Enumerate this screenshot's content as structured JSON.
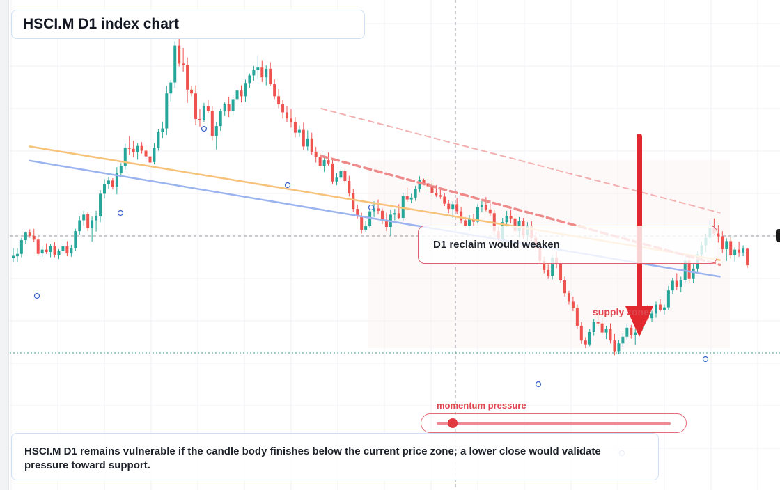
{
  "header": {
    "title": "HSCI.M D1 index chart"
  },
  "callout": {
    "text": "D1 reclaim would weaken"
  },
  "labels": {
    "supply": "supply zone",
    "momentum": "momentum pressure"
  },
  "summary": {
    "text": "HSCI.M D1 remains vulnerable if the candle body finishes below the current price zone; a lower close would validate pressure toward support."
  },
  "momentum": {
    "level": 0.07
  },
  "colors": {
    "bull": "#26a69a",
    "bear": "#ef5350",
    "trend_orange": "#f7c27a",
    "trend_blue": "#9bb4f0",
    "dashed_red": "#ee8a8a",
    "arrow": "#e0282e"
  },
  "chart_data": {
    "type": "candlestick",
    "title": "HSCI.M D1 index chart",
    "ylim": [
      0,
      1000
    ],
    "grid": true,
    "candles": [
      {
        "o": 484,
        "h": 505,
        "l": 476,
        "c": 489
      },
      {
        "o": 488,
        "h": 505,
        "l": 475,
        "c": 493
      },
      {
        "o": 493,
        "h": 527,
        "l": 486,
        "c": 522
      },
      {
        "o": 522,
        "h": 540,
        "l": 514,
        "c": 538
      },
      {
        "o": 538,
        "h": 545,
        "l": 527,
        "c": 531
      },
      {
        "o": 531,
        "h": 546,
        "l": 518,
        "c": 523
      },
      {
        "o": 523,
        "h": 528,
        "l": 489,
        "c": 493
      },
      {
        "o": 494,
        "h": 510,
        "l": 487,
        "c": 502
      },
      {
        "o": 502,
        "h": 515,
        "l": 493,
        "c": 497
      },
      {
        "o": 497,
        "h": 514,
        "l": 486,
        "c": 509
      },
      {
        "o": 509,
        "h": 518,
        "l": 486,
        "c": 490
      },
      {
        "o": 490,
        "h": 503,
        "l": 482,
        "c": 499
      },
      {
        "o": 499,
        "h": 515,
        "l": 491,
        "c": 509
      },
      {
        "o": 509,
        "h": 520,
        "l": 488,
        "c": 494
      },
      {
        "o": 494,
        "h": 512,
        "l": 487,
        "c": 505
      },
      {
        "o": 505,
        "h": 546,
        "l": 500,
        "c": 541
      },
      {
        "o": 541,
        "h": 572,
        "l": 534,
        "c": 564
      },
      {
        "o": 564,
        "h": 584,
        "l": 553,
        "c": 576
      },
      {
        "o": 577,
        "h": 581,
        "l": 541,
        "c": 547
      },
      {
        "o": 547,
        "h": 572,
        "l": 519,
        "c": 564
      },
      {
        "o": 564,
        "h": 584,
        "l": 540,
        "c": 572
      },
      {
        "o": 572,
        "h": 628,
        "l": 560,
        "c": 620
      },
      {
        "o": 620,
        "h": 651,
        "l": 610,
        "c": 641
      },
      {
        "o": 641,
        "h": 656,
        "l": 630,
        "c": 648
      },
      {
        "o": 648,
        "h": 653,
        "l": 629,
        "c": 635
      },
      {
        "o": 635,
        "h": 676,
        "l": 619,
        "c": 664
      },
      {
        "o": 664,
        "h": 685,
        "l": 656,
        "c": 679
      },
      {
        "o": 679,
        "h": 726,
        "l": 671,
        "c": 717
      },
      {
        "o": 717,
        "h": 742,
        "l": 702,
        "c": 715
      },
      {
        "o": 715,
        "h": 732,
        "l": 697,
        "c": 708
      },
      {
        "o": 708,
        "h": 727,
        "l": 692,
        "c": 721
      },
      {
        "o": 721,
        "h": 729,
        "l": 705,
        "c": 711
      },
      {
        "o": 711,
        "h": 723,
        "l": 690,
        "c": 699
      },
      {
        "o": 699,
        "h": 720,
        "l": 667,
        "c": 686
      },
      {
        "o": 687,
        "h": 727,
        "l": 682,
        "c": 717
      },
      {
        "o": 717,
        "h": 757,
        "l": 711,
        "c": 750
      },
      {
        "o": 750,
        "h": 772,
        "l": 738,
        "c": 758
      },
      {
        "o": 758,
        "h": 848,
        "l": 744,
        "c": 832
      },
      {
        "o": 832,
        "h": 860,
        "l": 815,
        "c": 855
      },
      {
        "o": 855,
        "h": 942,
        "l": 844,
        "c": 933
      },
      {
        "o": 933,
        "h": 955,
        "l": 889,
        "c": 895
      },
      {
        "o": 895,
        "h": 928,
        "l": 878,
        "c": 892
      },
      {
        "o": 892,
        "h": 908,
        "l": 812,
        "c": 840
      },
      {
        "o": 840,
        "h": 848,
        "l": 826,
        "c": 832
      },
      {
        "o": 832,
        "h": 849,
        "l": 765,
        "c": 778
      },
      {
        "o": 778,
        "h": 799,
        "l": 762,
        "c": 776
      },
      {
        "o": 776,
        "h": 812,
        "l": 771,
        "c": 805
      },
      {
        "o": 805,
        "h": 818,
        "l": 790,
        "c": 795
      },
      {
        "o": 795,
        "h": 805,
        "l": 733,
        "c": 742
      },
      {
        "o": 742,
        "h": 771,
        "l": 713,
        "c": 763
      },
      {
        "o": 763,
        "h": 800,
        "l": 753,
        "c": 794
      },
      {
        "o": 794,
        "h": 813,
        "l": 785,
        "c": 809
      },
      {
        "o": 809,
        "h": 825,
        "l": 782,
        "c": 794
      },
      {
        "o": 794,
        "h": 828,
        "l": 786,
        "c": 820
      },
      {
        "o": 820,
        "h": 845,
        "l": 809,
        "c": 838
      },
      {
        "o": 838,
        "h": 849,
        "l": 813,
        "c": 826
      },
      {
        "o": 826,
        "h": 861,
        "l": 814,
        "c": 854
      },
      {
        "o": 854,
        "h": 874,
        "l": 844,
        "c": 870
      },
      {
        "o": 870,
        "h": 890,
        "l": 859,
        "c": 881
      },
      {
        "o": 881,
        "h": 912,
        "l": 862,
        "c": 888
      },
      {
        "o": 888,
        "h": 902,
        "l": 856,
        "c": 866
      },
      {
        "o": 866,
        "h": 891,
        "l": 849,
        "c": 884
      },
      {
        "o": 884,
        "h": 898,
        "l": 848,
        "c": 852
      },
      {
        "o": 852,
        "h": 862,
        "l": 820,
        "c": 826
      },
      {
        "o": 826,
        "h": 841,
        "l": 801,
        "c": 809
      },
      {
        "o": 809,
        "h": 818,
        "l": 779,
        "c": 792
      },
      {
        "o": 792,
        "h": 806,
        "l": 772,
        "c": 779
      },
      {
        "o": 779,
        "h": 799,
        "l": 760,
        "c": 771
      },
      {
        "o": 771,
        "h": 782,
        "l": 739,
        "c": 749
      },
      {
        "o": 749,
        "h": 764,
        "l": 740,
        "c": 755
      },
      {
        "o": 755,
        "h": 770,
        "l": 712,
        "c": 720
      },
      {
        "o": 720,
        "h": 754,
        "l": 711,
        "c": 737
      },
      {
        "o": 737,
        "h": 749,
        "l": 702,
        "c": 709
      },
      {
        "o": 709,
        "h": 719,
        "l": 686,
        "c": 698
      },
      {
        "o": 698,
        "h": 706,
        "l": 673,
        "c": 679
      },
      {
        "o": 679,
        "h": 700,
        "l": 666,
        "c": 691
      },
      {
        "o": 691,
        "h": 707,
        "l": 679,
        "c": 684
      },
      {
        "o": 684,
        "h": 694,
        "l": 640,
        "c": 646
      },
      {
        "o": 646,
        "h": 664,
        "l": 638,
        "c": 654
      },
      {
        "o": 654,
        "h": 673,
        "l": 651,
        "c": 668
      },
      {
        "o": 668,
        "h": 676,
        "l": 641,
        "c": 647
      },
      {
        "o": 647,
        "h": 658,
        "l": 614,
        "c": 621
      },
      {
        "o": 621,
        "h": 630,
        "l": 582,
        "c": 588
      },
      {
        "o": 588,
        "h": 597,
        "l": 568,
        "c": 573
      },
      {
        "o": 573,
        "h": 580,
        "l": 536,
        "c": 544
      },
      {
        "o": 544,
        "h": 563,
        "l": 539,
        "c": 552
      },
      {
        "o": 552,
        "h": 590,
        "l": 548,
        "c": 583
      },
      {
        "o": 583,
        "h": 604,
        "l": 571,
        "c": 589
      },
      {
        "o": 589,
        "h": 608,
        "l": 577,
        "c": 584
      },
      {
        "o": 584,
        "h": 589,
        "l": 556,
        "c": 565
      },
      {
        "o": 565,
        "h": 580,
        "l": 541,
        "c": 550
      },
      {
        "o": 550,
        "h": 587,
        "l": 531,
        "c": 576
      },
      {
        "o": 576,
        "h": 588,
        "l": 564,
        "c": 579
      },
      {
        "o": 579,
        "h": 598,
        "l": 566,
        "c": 569
      },
      {
        "o": 569,
        "h": 622,
        "l": 562,
        "c": 615
      },
      {
        "o": 615,
        "h": 633,
        "l": 603,
        "c": 608
      },
      {
        "o": 608,
        "h": 620,
        "l": 600,
        "c": 612
      },
      {
        "o": 612,
        "h": 637,
        "l": 605,
        "c": 630
      },
      {
        "o": 630,
        "h": 657,
        "l": 623,
        "c": 649
      },
      {
        "o": 649,
        "h": 652,
        "l": 638,
        "c": 642
      },
      {
        "o": 642,
        "h": 655,
        "l": 627,
        "c": 636
      },
      {
        "o": 636,
        "h": 648,
        "l": 614,
        "c": 622
      },
      {
        "o": 622,
        "h": 638,
        "l": 613,
        "c": 617
      },
      {
        "o": 617,
        "h": 631,
        "l": 609,
        "c": 614
      },
      {
        "o": 614,
        "h": 621,
        "l": 594,
        "c": 599
      },
      {
        "o": 599,
        "h": 606,
        "l": 579,
        "c": 588
      },
      {
        "o": 588,
        "h": 604,
        "l": 569,
        "c": 598
      },
      {
        "o": 598,
        "h": 611,
        "l": 577,
        "c": 583
      },
      {
        "o": 583,
        "h": 592,
        "l": 557,
        "c": 564
      },
      {
        "o": 564,
        "h": 571,
        "l": 548,
        "c": 552
      },
      {
        "o": 552,
        "h": 575,
        "l": 542,
        "c": 566
      },
      {
        "o": 566,
        "h": 578,
        "l": 553,
        "c": 561
      },
      {
        "o": 561,
        "h": 598,
        "l": 557,
        "c": 592
      },
      {
        "o": 592,
        "h": 609,
        "l": 581,
        "c": 596
      },
      {
        "o": 596,
        "h": 613,
        "l": 583,
        "c": 587
      },
      {
        "o": 587,
        "h": 606,
        "l": 573,
        "c": 579
      },
      {
        "o": 579,
        "h": 587,
        "l": 534,
        "c": 541
      },
      {
        "o": 541,
        "h": 551,
        "l": 516,
        "c": 522
      },
      {
        "o": 522,
        "h": 569,
        "l": 514,
        "c": 560
      },
      {
        "o": 560,
        "h": 584,
        "l": 550,
        "c": 573
      },
      {
        "o": 573,
        "h": 586,
        "l": 558,
        "c": 568
      },
      {
        "o": 568,
        "h": 578,
        "l": 534,
        "c": 541
      },
      {
        "o": 541,
        "h": 571,
        "l": 528,
        "c": 562
      },
      {
        "o": 562,
        "h": 569,
        "l": 524,
        "c": 533
      },
      {
        "o": 533,
        "h": 560,
        "l": 520,
        "c": 553
      },
      {
        "o": 553,
        "h": 562,
        "l": 520,
        "c": 527
      },
      {
        "o": 527,
        "h": 539,
        "l": 499,
        "c": 506
      },
      {
        "o": 506,
        "h": 512,
        "l": 471,
        "c": 478
      },
      {
        "o": 478,
        "h": 487,
        "l": 452,
        "c": 459
      },
      {
        "o": 459,
        "h": 470,
        "l": 440,
        "c": 447
      },
      {
        "o": 447,
        "h": 491,
        "l": 439,
        "c": 485
      },
      {
        "o": 485,
        "h": 498,
        "l": 463,
        "c": 471
      },
      {
        "o": 471,
        "h": 479,
        "l": 432,
        "c": 437
      },
      {
        "o": 437,
        "h": 445,
        "l": 403,
        "c": 410
      },
      {
        "o": 410,
        "h": 415,
        "l": 386,
        "c": 392
      },
      {
        "o": 392,
        "h": 403,
        "l": 372,
        "c": 379
      },
      {
        "o": 379,
        "h": 386,
        "l": 335,
        "c": 341
      },
      {
        "o": 341,
        "h": 349,
        "l": 303,
        "c": 310
      },
      {
        "o": 310,
        "h": 317,
        "l": 294,
        "c": 302
      },
      {
        "o": 302,
        "h": 335,
        "l": 298,
        "c": 328
      },
      {
        "o": 328,
        "h": 355,
        "l": 320,
        "c": 349
      },
      {
        "o": 349,
        "h": 364,
        "l": 340,
        "c": 346
      },
      {
        "o": 346,
        "h": 357,
        "l": 320,
        "c": 327
      },
      {
        "o": 327,
        "h": 341,
        "l": 313,
        "c": 335
      },
      {
        "o": 335,
        "h": 346,
        "l": 304,
        "c": 310
      },
      {
        "o": 310,
        "h": 324,
        "l": 279,
        "c": 286
      },
      {
        "o": 286,
        "h": 311,
        "l": 281,
        "c": 304
      },
      {
        "o": 304,
        "h": 325,
        "l": 297,
        "c": 318
      },
      {
        "o": 318,
        "h": 345,
        "l": 311,
        "c": 337
      },
      {
        "o": 337,
        "h": 343,
        "l": 314,
        "c": 322
      },
      {
        "o": 322,
        "h": 335,
        "l": 301,
        "c": 327
      },
      {
        "o": 327,
        "h": 352,
        "l": 322,
        "c": 344
      },
      {
        "o": 344,
        "h": 376,
        "l": 336,
        "c": 368
      },
      {
        "o": 368,
        "h": 385,
        "l": 352,
        "c": 357
      },
      {
        "o": 357,
        "h": 373,
        "l": 349,
        "c": 367
      },
      {
        "o": 367,
        "h": 392,
        "l": 358,
        "c": 386
      },
      {
        "o": 386,
        "h": 397,
        "l": 371,
        "c": 375
      },
      {
        "o": 375,
        "h": 386,
        "l": 365,
        "c": 380
      },
      {
        "o": 380,
        "h": 425,
        "l": 375,
        "c": 416
      },
      {
        "o": 416,
        "h": 442,
        "l": 408,
        "c": 436
      },
      {
        "o": 436,
        "h": 452,
        "l": 417,
        "c": 423
      },
      {
        "o": 423,
        "h": 445,
        "l": 412,
        "c": 438
      },
      {
        "o": 438,
        "h": 487,
        "l": 430,
        "c": 479
      },
      {
        "o": 479,
        "h": 486,
        "l": 432,
        "c": 440
      },
      {
        "o": 440,
        "h": 471,
        "l": 431,
        "c": 462
      },
      {
        "o": 462,
        "h": 500,
        "l": 453,
        "c": 492
      },
      {
        "o": 492,
        "h": 519,
        "l": 482,
        "c": 511
      },
      {
        "o": 511,
        "h": 536,
        "l": 497,
        "c": 527
      },
      {
        "o": 527,
        "h": 564,
        "l": 515,
        "c": 548
      },
      {
        "o": 548,
        "h": 568,
        "l": 533,
        "c": 536
      },
      {
        "o": 536,
        "h": 554,
        "l": 517,
        "c": 530
      },
      {
        "o": 530,
        "h": 541,
        "l": 495,
        "c": 503
      },
      {
        "o": 503,
        "h": 526,
        "l": 478,
        "c": 520
      },
      {
        "o": 520,
        "h": 528,
        "l": 483,
        "c": 490
      },
      {
        "o": 490,
        "h": 507,
        "l": 477,
        "c": 502
      },
      {
        "o": 502,
        "h": 519,
        "l": 487,
        "c": 496
      },
      {
        "o": 496,
        "h": 511,
        "l": 488,
        "c": 504
      },
      {
        "o": 504,
        "h": 506,
        "l": 463,
        "c": 469
      }
    ],
    "trendlines": [
      {
        "name": "",
        "from": [
          0.025,
          720
        ],
        "to": [
          0.96,
          480
        ]
      },
      {
        "name": "",
        "from": [
          0.025,
          690
        ],
        "to": [
          0.96,
          445
        ]
      },
      {
        "name": "",
        "from": [
          0.42,
          700
        ],
        "to": [
          0.96,
          470
        ]
      },
      {
        "name": "",
        "from": [
          0.42,
          800
        ],
        "to": [
          0.96,
          580
        ]
      }
    ],
    "annotations": [
      "D1 reclaim would weaken",
      "supply zone",
      "momentum pressure"
    ]
  }
}
